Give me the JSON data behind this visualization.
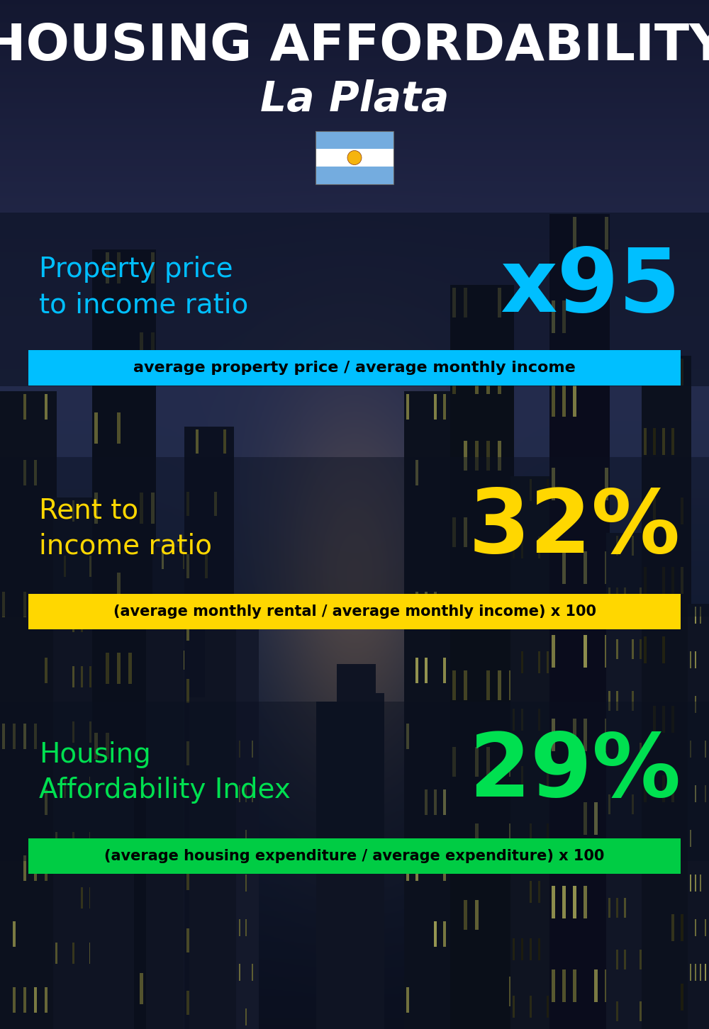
{
  "title_line1": "HOUSING AFFORDABILITY",
  "title_line2": "La Plata",
  "bg_color": "#050810",
  "title_color": "#ffffff",
  "subtitle_color": "#ffffff",
  "section1_label": "Property price\nto income ratio",
  "section1_value": "x95",
  "section1_label_color": "#00bfff",
  "section1_value_color": "#00bfff",
  "section1_band_color": "#00bfff",
  "section1_band_text": "average property price / average monthly income",
  "section1_band_text_color": "#000000",
  "section2_label": "Rent to\nincome ratio",
  "section2_value": "32%",
  "section2_label_color": "#ffd700",
  "section2_value_color": "#ffd700",
  "section2_band_color": "#ffd700",
  "section2_band_text": "(average monthly rental / average monthly income) x 100",
  "section2_band_text_color": "#000000",
  "section3_label": "Housing\nAffordability Index",
  "section3_value": "29%",
  "section3_label_color": "#00e050",
  "section3_value_color": "#00e050",
  "section3_band_color": "#00cc44",
  "section3_band_text": "(average housing expenditure / average expenditure) x 100",
  "section3_band_text_color": "#000000",
  "band_alpha": 1.0,
  "title_fontsize": 52,
  "subtitle_fontsize": 42,
  "label_fontsize": 28,
  "value_fontsize": 90,
  "band_fontsize": 16
}
